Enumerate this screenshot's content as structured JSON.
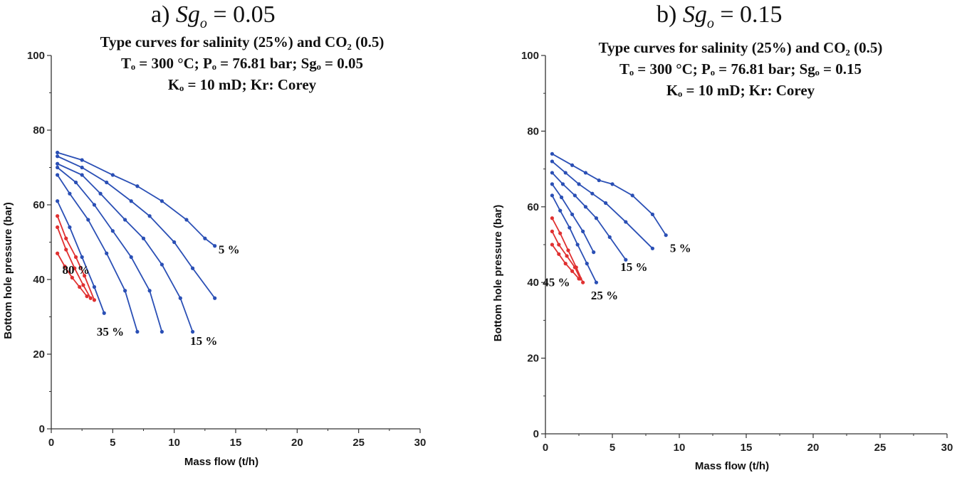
{
  "panels": [
    {
      "label": "a)",
      "var": "Sg",
      "sub": "o",
      "rest": "= 0.05"
    },
    {
      "label": "b)",
      "var": "Sg",
      "sub": "o",
      "rest": "= 0.15"
    }
  ],
  "chart_data": [
    {
      "type": "line",
      "title_lines": [
        "Type curves for salinity (25%) and CO₂ (0.5)",
        "Tₒ = 300 °C;  Pₒ = 76.81 bar;  Sgₒ = 0.05",
        "Kₒ = 10 mD;  Kr: Corey"
      ],
      "xlabel": "Mass flow (t/h)",
      "ylabel": "Bottom hole pressure (bar)",
      "xlim": [
        0,
        30
      ],
      "ylim": [
        0,
        100
      ],
      "xticks": [
        0,
        5,
        10,
        15,
        20,
        25,
        30
      ],
      "yticks": [
        0,
        20,
        40,
        60,
        80,
        100
      ],
      "annotations": [
        {
          "text": "5 %",
          "x": 13.6,
          "y": 47
        },
        {
          "text": "15 %",
          "x": 11.3,
          "y": 22.5
        },
        {
          "text": "35 %",
          "x": 3.7,
          "y": 25
        },
        {
          "text": "80 %",
          "x": 0.9,
          "y": 41.5
        }
      ],
      "series": [
        {
          "color": "#2a4fb5",
          "x": [
            0.5,
            2.5,
            5,
            7,
            9,
            11,
            12.5,
            13.3
          ],
          "y": [
            74,
            72,
            68,
            65,
            61,
            56,
            51,
            49
          ]
        },
        {
          "color": "#2a4fb5",
          "x": [
            0.5,
            2.5,
            4.5,
            6.5,
            8,
            10,
            11.5,
            13.3
          ],
          "y": [
            73,
            70,
            66,
            61,
            57,
            50,
            43,
            35
          ]
        },
        {
          "color": "#2a4fb5",
          "x": [
            0.5,
            2.5,
            4,
            6,
            7.5,
            9,
            10.5,
            11.5
          ],
          "y": [
            71,
            68,
            63,
            56,
            51,
            44,
            35,
            26
          ]
        },
        {
          "color": "#2a4fb5",
          "x": [
            0.5,
            2,
            3.5,
            5,
            6.5,
            8,
            9
          ],
          "y": [
            70,
            66,
            60,
            53,
            46,
            37,
            26
          ]
        },
        {
          "color": "#2a4fb5",
          "x": [
            0.5,
            1.5,
            3,
            4.5,
            6,
            7
          ],
          "y": [
            68,
            63,
            56,
            47,
            37,
            26
          ]
        },
        {
          "color": "#2a4fb5",
          "x": [
            0.5,
            1.5,
            2.5,
            3.5,
            4.3
          ],
          "y": [
            61,
            54,
            46,
            38,
            31
          ]
        },
        {
          "color": "#e03030",
          "x": [
            0.5,
            1.2,
            2,
            2.7,
            3.5
          ],
          "y": [
            57,
            51,
            46,
            41,
            34.5
          ]
        },
        {
          "color": "#e03030",
          "x": [
            0.5,
            1.2,
            1.9,
            2.6,
            3.2
          ],
          "y": [
            54,
            48,
            43,
            38.5,
            35
          ]
        },
        {
          "color": "#e03030",
          "x": [
            0.5,
            1.1,
            1.7,
            2.3,
            2.9
          ],
          "y": [
            47,
            43.5,
            40.5,
            38,
            35.5
          ]
        }
      ]
    },
    {
      "type": "line",
      "title_lines": [
        "Type curves for salinity (25%) and CO₂ (0.5)",
        "Tₒ = 300 °C;  Pₒ = 76.81 bar;  Sgₒ = 0.15",
        "Kₒ = 10 mD;  Kr: Corey"
      ],
      "xlabel": "Mass flow (t/h)",
      "ylabel": "Bottom hole pressure (bar)",
      "xlim": [
        0,
        30
      ],
      "ylim": [
        0,
        100
      ],
      "xticks": [
        0,
        5,
        10,
        15,
        20,
        25,
        30
      ],
      "yticks": [
        0,
        20,
        40,
        60,
        80,
        100
      ],
      "annotations": [
        {
          "text": "5 %",
          "x": 9.3,
          "y": 48
        },
        {
          "text": "15 %",
          "x": 5.6,
          "y": 43
        },
        {
          "text": "25 %",
          "x": 3.4,
          "y": 35.5
        },
        {
          "text": "45 %",
          "x": -0.2,
          "y": 39
        }
      ],
      "series": [
        {
          "color": "#2a4fb5",
          "x": [
            0.5,
            2,
            3,
            4,
            5,
            6.5,
            8,
            9
          ],
          "y": [
            74,
            71,
            69,
            67,
            66,
            63,
            58,
            52.5
          ]
        },
        {
          "color": "#2a4fb5",
          "x": [
            0.5,
            1.5,
            2.5,
            3.5,
            4.5,
            6,
            8
          ],
          "y": [
            72,
            69,
            66,
            63.5,
            61,
            56,
            49
          ]
        },
        {
          "color": "#2a4fb5",
          "x": [
            0.5,
            1.3,
            2.2,
            3,
            3.8,
            4.8,
            6
          ],
          "y": [
            69,
            66,
            63,
            60,
            57,
            52,
            46
          ]
        },
        {
          "color": "#2a4fb5",
          "x": [
            0.5,
            1.2,
            2,
            2.8,
            3.6
          ],
          "y": [
            66,
            62.5,
            58,
            53.5,
            48
          ]
        },
        {
          "color": "#2a4fb5",
          "x": [
            0.5,
            1.1,
            1.8,
            2.4,
            3.1,
            3.8
          ],
          "y": [
            63,
            59,
            54.5,
            50,
            45,
            40
          ]
        },
        {
          "color": "#e03030",
          "x": [
            0.5,
            1.1,
            1.7,
            2.3,
            2.8
          ],
          "y": [
            57,
            53,
            48.5,
            44,
            40
          ]
        },
        {
          "color": "#e03030",
          "x": [
            0.5,
            1,
            1.6,
            2.2,
            2.6
          ],
          "y": [
            53.5,
            50,
            47,
            44,
            41
          ]
        },
        {
          "color": "#e03030",
          "x": [
            0.5,
            1,
            1.5,
            2,
            2.5
          ],
          "y": [
            50,
            47.5,
            45,
            43,
            41
          ]
        }
      ]
    }
  ]
}
